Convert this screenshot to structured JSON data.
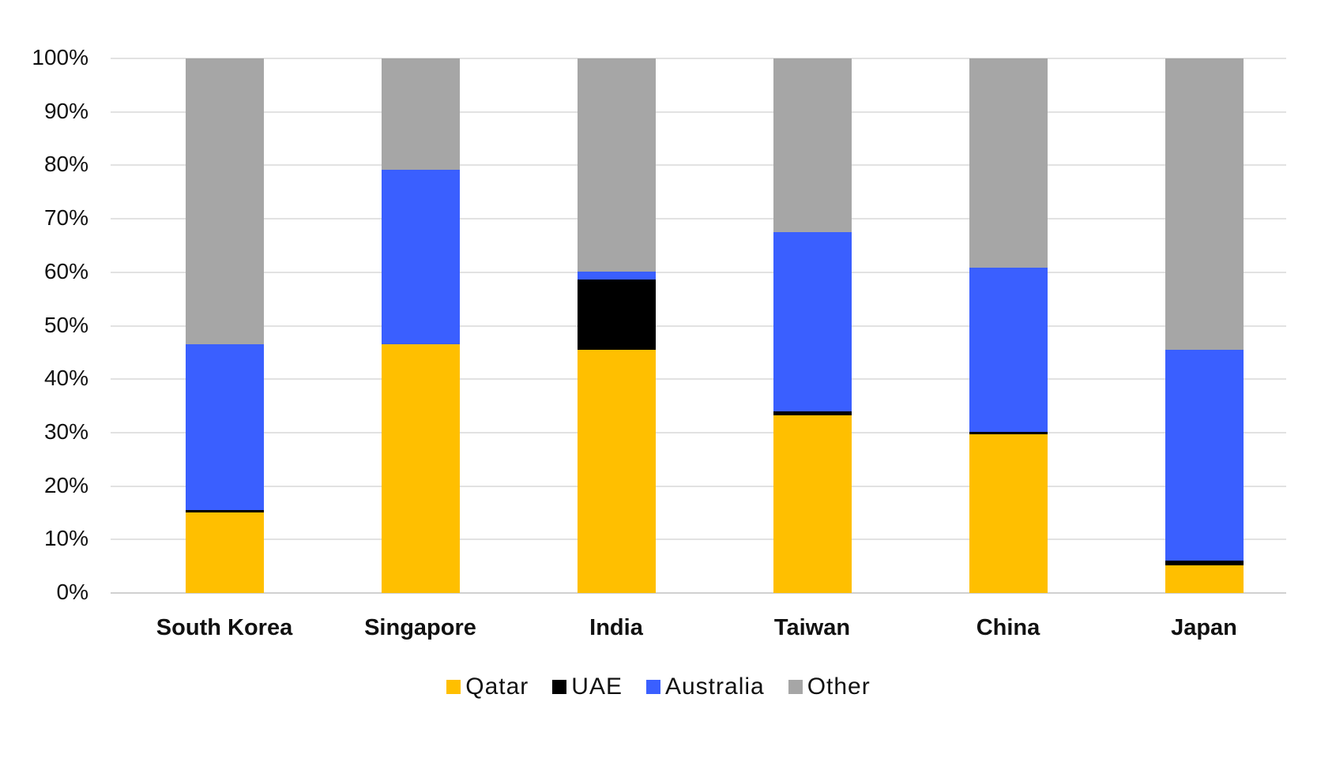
{
  "chart_data": {
    "type": "bar",
    "stacked": true,
    "normalized": true,
    "title": "",
    "xlabel": "",
    "ylabel": "",
    "ylim": [
      0,
      100
    ],
    "y_ticks": [
      "0%",
      "10%",
      "20%",
      "30%",
      "40%",
      "50%",
      "60%",
      "70%",
      "80%",
      "90%",
      "100%"
    ],
    "grid": true,
    "legend_position": "bottom",
    "categories": [
      "South Korea",
      "Singapore",
      "India",
      "Taiwan",
      "China",
      "Japan"
    ],
    "series": [
      {
        "name": "Qatar",
        "color": "#FFBF00",
        "values": [
          15.0,
          46.5,
          45.5,
          33.3,
          29.7,
          5.1
        ]
      },
      {
        "name": "UAE",
        "color": "#000000",
        "values": [
          0.5,
          0.0,
          13.1,
          0.7,
          0.5,
          0.9
        ]
      },
      {
        "name": "Australia",
        "color": "#3A5FFF",
        "values": [
          31.0,
          32.7,
          1.5,
          33.5,
          30.6,
          39.5
        ]
      },
      {
        "name": "Other",
        "color": "#A6A6A6",
        "values": [
          53.5,
          20.8,
          39.9,
          32.5,
          39.2,
          54.5
        ]
      }
    ]
  },
  "legend": {
    "items": [
      {
        "label": "Qatar",
        "color": "#FFBF00"
      },
      {
        "label": "UAE",
        "color": "#000000"
      },
      {
        "label": "Australia",
        "color": "#3A5FFF"
      },
      {
        "label": "Other",
        "color": "#A6A6A6"
      }
    ]
  }
}
